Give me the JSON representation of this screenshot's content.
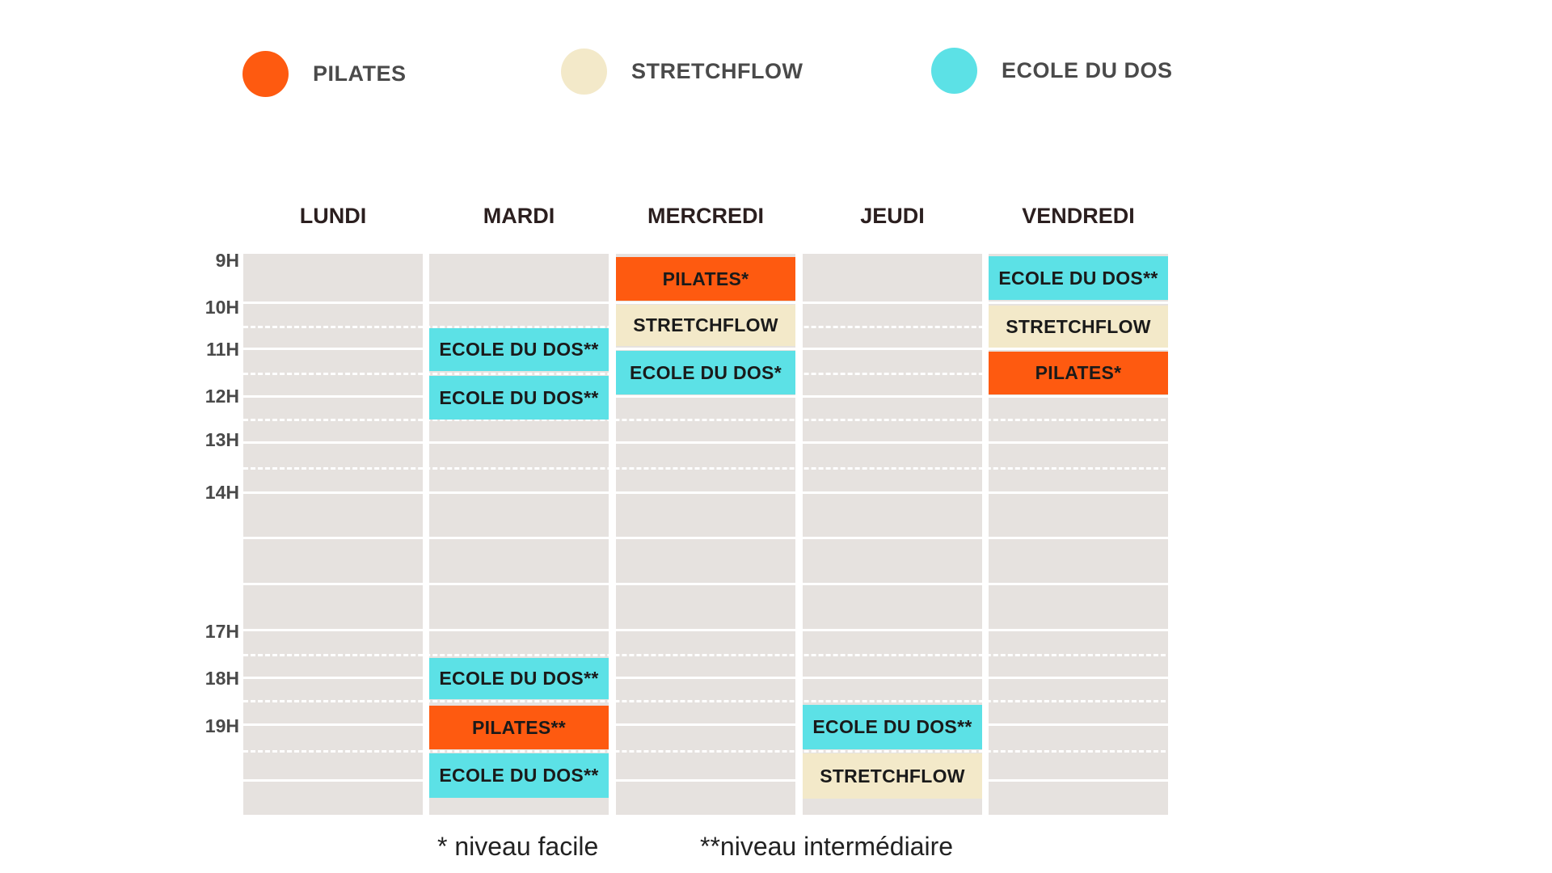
{
  "legend": [
    {
      "label": "PILATES",
      "color": "#fe5a10"
    },
    {
      "label": "STRETCHFLOW",
      "color": "#f3e9c9"
    },
    {
      "label": "ECOLE DU DOS",
      "color": "#5ce1e6"
    }
  ],
  "days": [
    "LUNDI",
    "MARDI",
    "MERCREDI",
    "JEUDI",
    "VENDREDI"
  ],
  "times": [
    "9H",
    "10H",
    "11H",
    "12H",
    "13H",
    "14H",
    "17H",
    "18H",
    "19H"
  ],
  "events": {
    "mardi_1": "ECOLE DU DOS**",
    "mardi_2": "ECOLE DU DOS**",
    "mardi_3": "ECOLE DU DOS**",
    "mardi_4": "PILATES**",
    "mardi_5": "ECOLE DU DOS**",
    "mercredi_1": "PILATES*",
    "mercredi_2": "STRETCHFLOW",
    "mercredi_3": "ECOLE DU DOS*",
    "jeudi_1": "ECOLE DU DOS**",
    "jeudi_2": "STRETCHFLOW",
    "vendredi_1": "ECOLE DU DOS**",
    "vendredi_2": "STRETCHFLOW",
    "vendredi_3": "PILATES*"
  },
  "colors": {
    "pilates": "#fe5a10",
    "stretchflow": "#f3e9c9",
    "ecole_du_dos": "#5ce1e6",
    "grid": "#e6e2df"
  },
  "notes": {
    "easy": "* niveau facile",
    "intermediate": "**niveau intermédiaire"
  }
}
